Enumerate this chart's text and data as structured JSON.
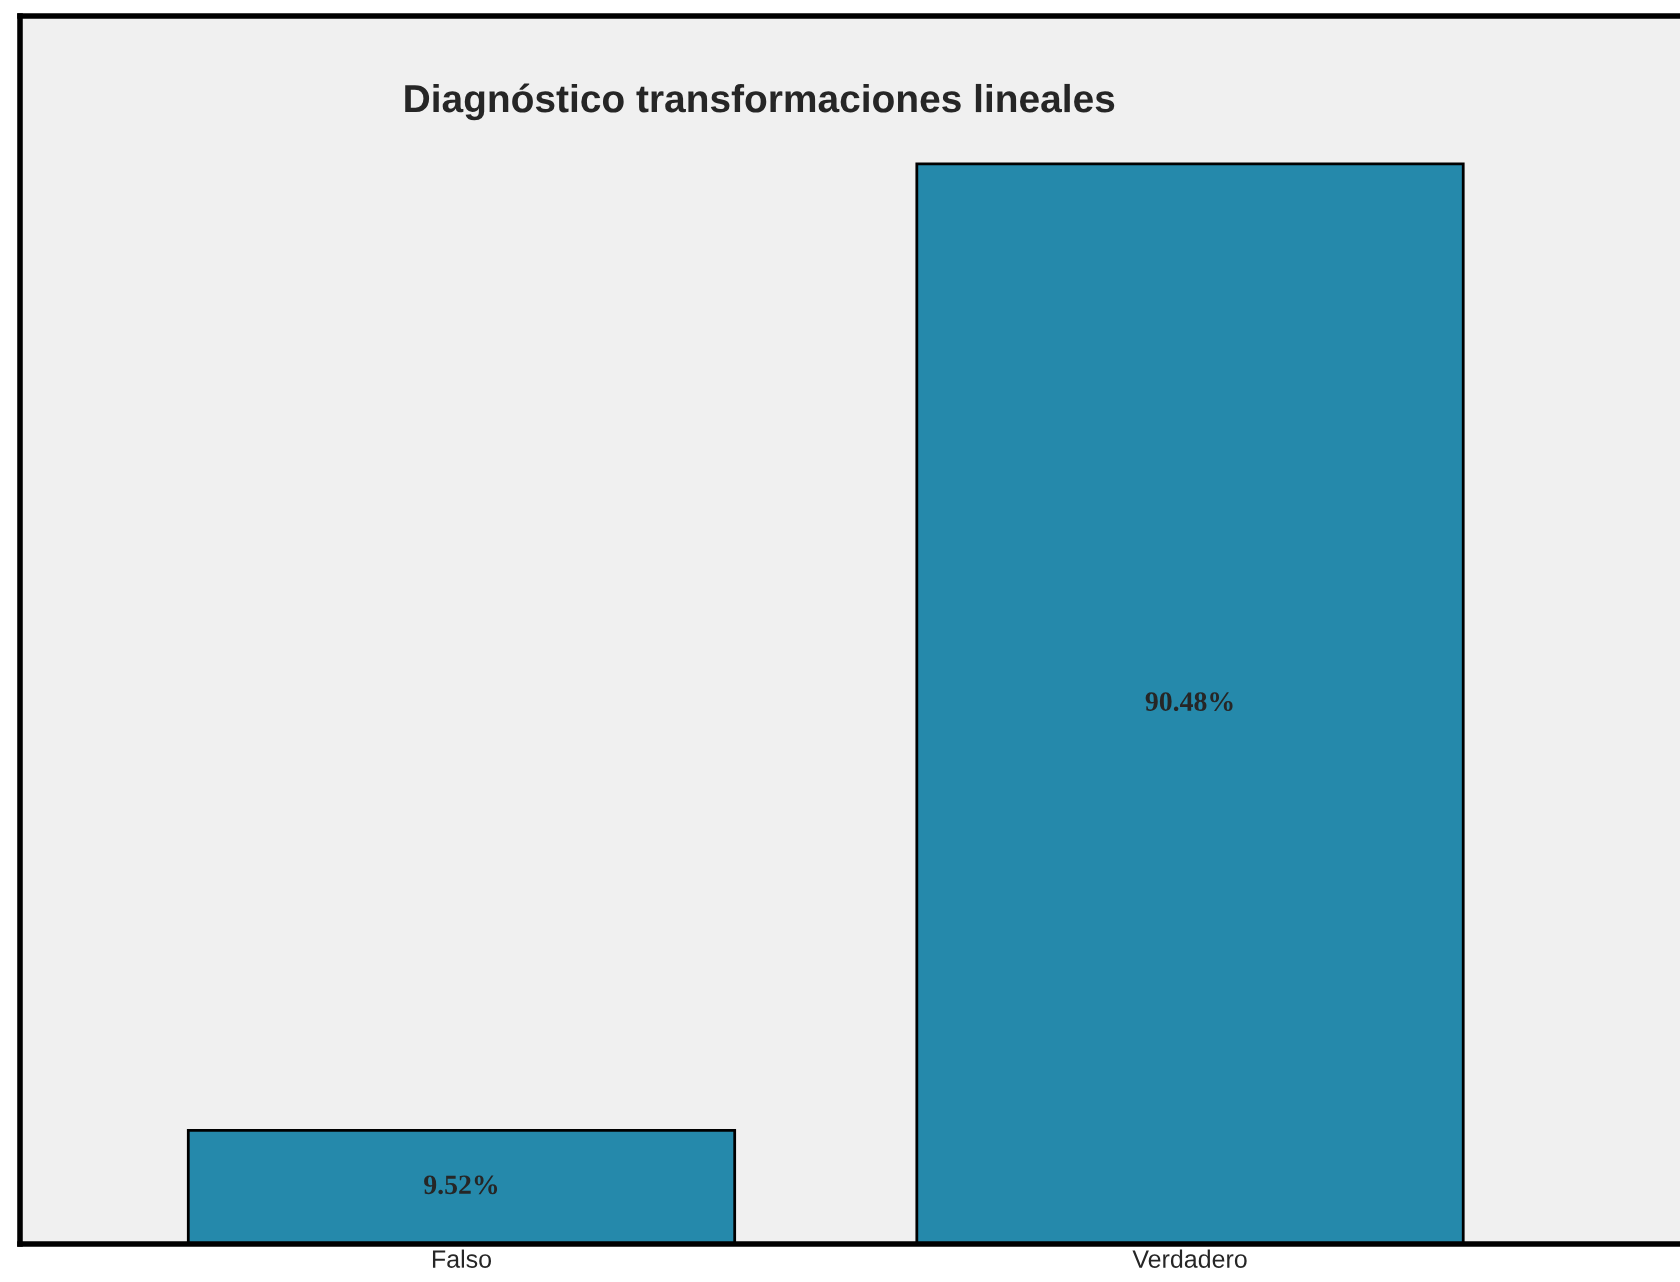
{
  "chart_data": {
    "type": "bar",
    "title": "Diagnóstico transformaciones lineales",
    "categories": [
      "Falso",
      "Verdadero"
    ],
    "values": [
      9.52,
      90.48
    ],
    "color": "#2589ab",
    "value_labels": [
      "9.52%",
      "90.48%"
    ],
    "grid": false,
    "legend": false
  }
}
